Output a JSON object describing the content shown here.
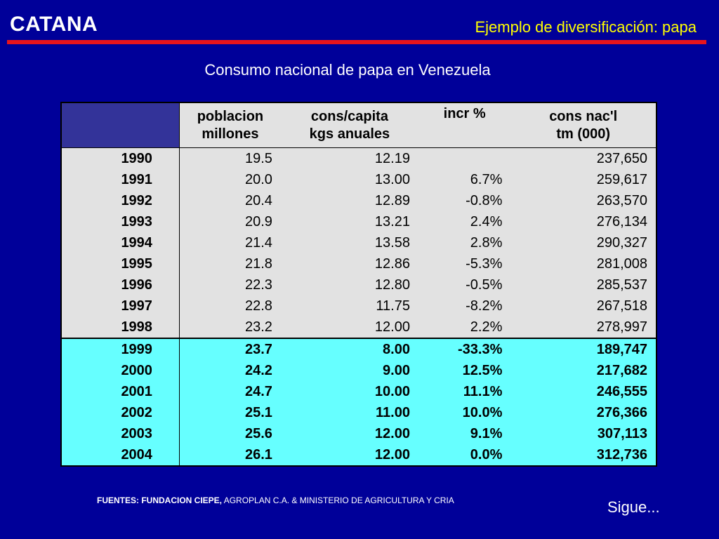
{
  "header": {
    "brand": "CATANA",
    "subtitle": "Ejemplo de diversificación: papa"
  },
  "slide_title": "Consumo nacional de papa en Venezuela",
  "table": {
    "headers": [
      {
        "line1": "",
        "line2": ""
      },
      {
        "line1": "poblacion",
        "line2": "millones"
      },
      {
        "line1": "cons/capita",
        "line2": "kgs anuales"
      },
      {
        "line1": "incr %",
        "line2": ""
      },
      {
        "line1": "cons nac'l",
        "line2": "tm (000)"
      }
    ],
    "historical_rows": [
      {
        "year": "1990",
        "poblacion": "19.5",
        "cons_capita": "12.19",
        "incr": "",
        "cons_nac": "237,650"
      },
      {
        "year": "1991",
        "poblacion": "20.0",
        "cons_capita": "13.00",
        "incr": "6.7%",
        "cons_nac": "259,617"
      },
      {
        "year": "1992",
        "poblacion": "20.4",
        "cons_capita": "12.89",
        "incr": "-0.8%",
        "cons_nac": "263,570"
      },
      {
        "year": "1993",
        "poblacion": "20.9",
        "cons_capita": "13.21",
        "incr": "2.4%",
        "cons_nac": "276,134"
      },
      {
        "year": "1994",
        "poblacion": "21.4",
        "cons_capita": "13.58",
        "incr": "2.8%",
        "cons_nac": "290,327"
      },
      {
        "year": "1995",
        "poblacion": "21.8",
        "cons_capita": "12.86",
        "incr": "-5.3%",
        "cons_nac": "281,008"
      },
      {
        "year": "1996",
        "poblacion": "22.3",
        "cons_capita": "12.80",
        "incr": "-0.5%",
        "cons_nac": "285,537"
      },
      {
        "year": "1997",
        "poblacion": "22.8",
        "cons_capita": "11.75",
        "incr": "-8.2%",
        "cons_nac": "267,518"
      },
      {
        "year": "1998",
        "poblacion": "23.2",
        "cons_capita": "12.00",
        "incr": "2.2%",
        "cons_nac": "278,997"
      }
    ],
    "projected_rows": [
      {
        "year": "1999",
        "poblacion": "23.7",
        "cons_capita": "8.00",
        "incr": "-33.3%",
        "cons_nac": "189,747"
      },
      {
        "year": "2000",
        "poblacion": "24.2",
        "cons_capita": "9.00",
        "incr": "12.5%",
        "cons_nac": "217,682"
      },
      {
        "year": "2001",
        "poblacion": "24.7",
        "cons_capita": "10.00",
        "incr": "11.1%",
        "cons_nac": "246,555"
      },
      {
        "year": "2002",
        "poblacion": "25.1",
        "cons_capita": "11.00",
        "incr": "10.0%",
        "cons_nac": "276,366"
      },
      {
        "year": "2003",
        "poblacion": "25.6",
        "cons_capita": "12.00",
        "incr": "9.1%",
        "cons_nac": "307,113"
      },
      {
        "year": "2004",
        "poblacion": "26.1",
        "cons_capita": "12.00",
        "incr": "0.0%",
        "cons_nac": "312,736"
      }
    ]
  },
  "footer": {
    "sources_bold": "FUENTES: FUNDACION CIEPE,",
    "sources_rest": " AGROPLAN C.A. & MINISTERIO DE AGRICULTURA Y CRIA",
    "next_label": "Sigue..."
  },
  "colors": {
    "background": "#000099",
    "accent_rule": "#e8141c",
    "subtitle": "#ffff00",
    "historical_row_bg": "#e2e2e2",
    "projected_row_bg": "#66ffff",
    "header_corner": "#333399"
  }
}
